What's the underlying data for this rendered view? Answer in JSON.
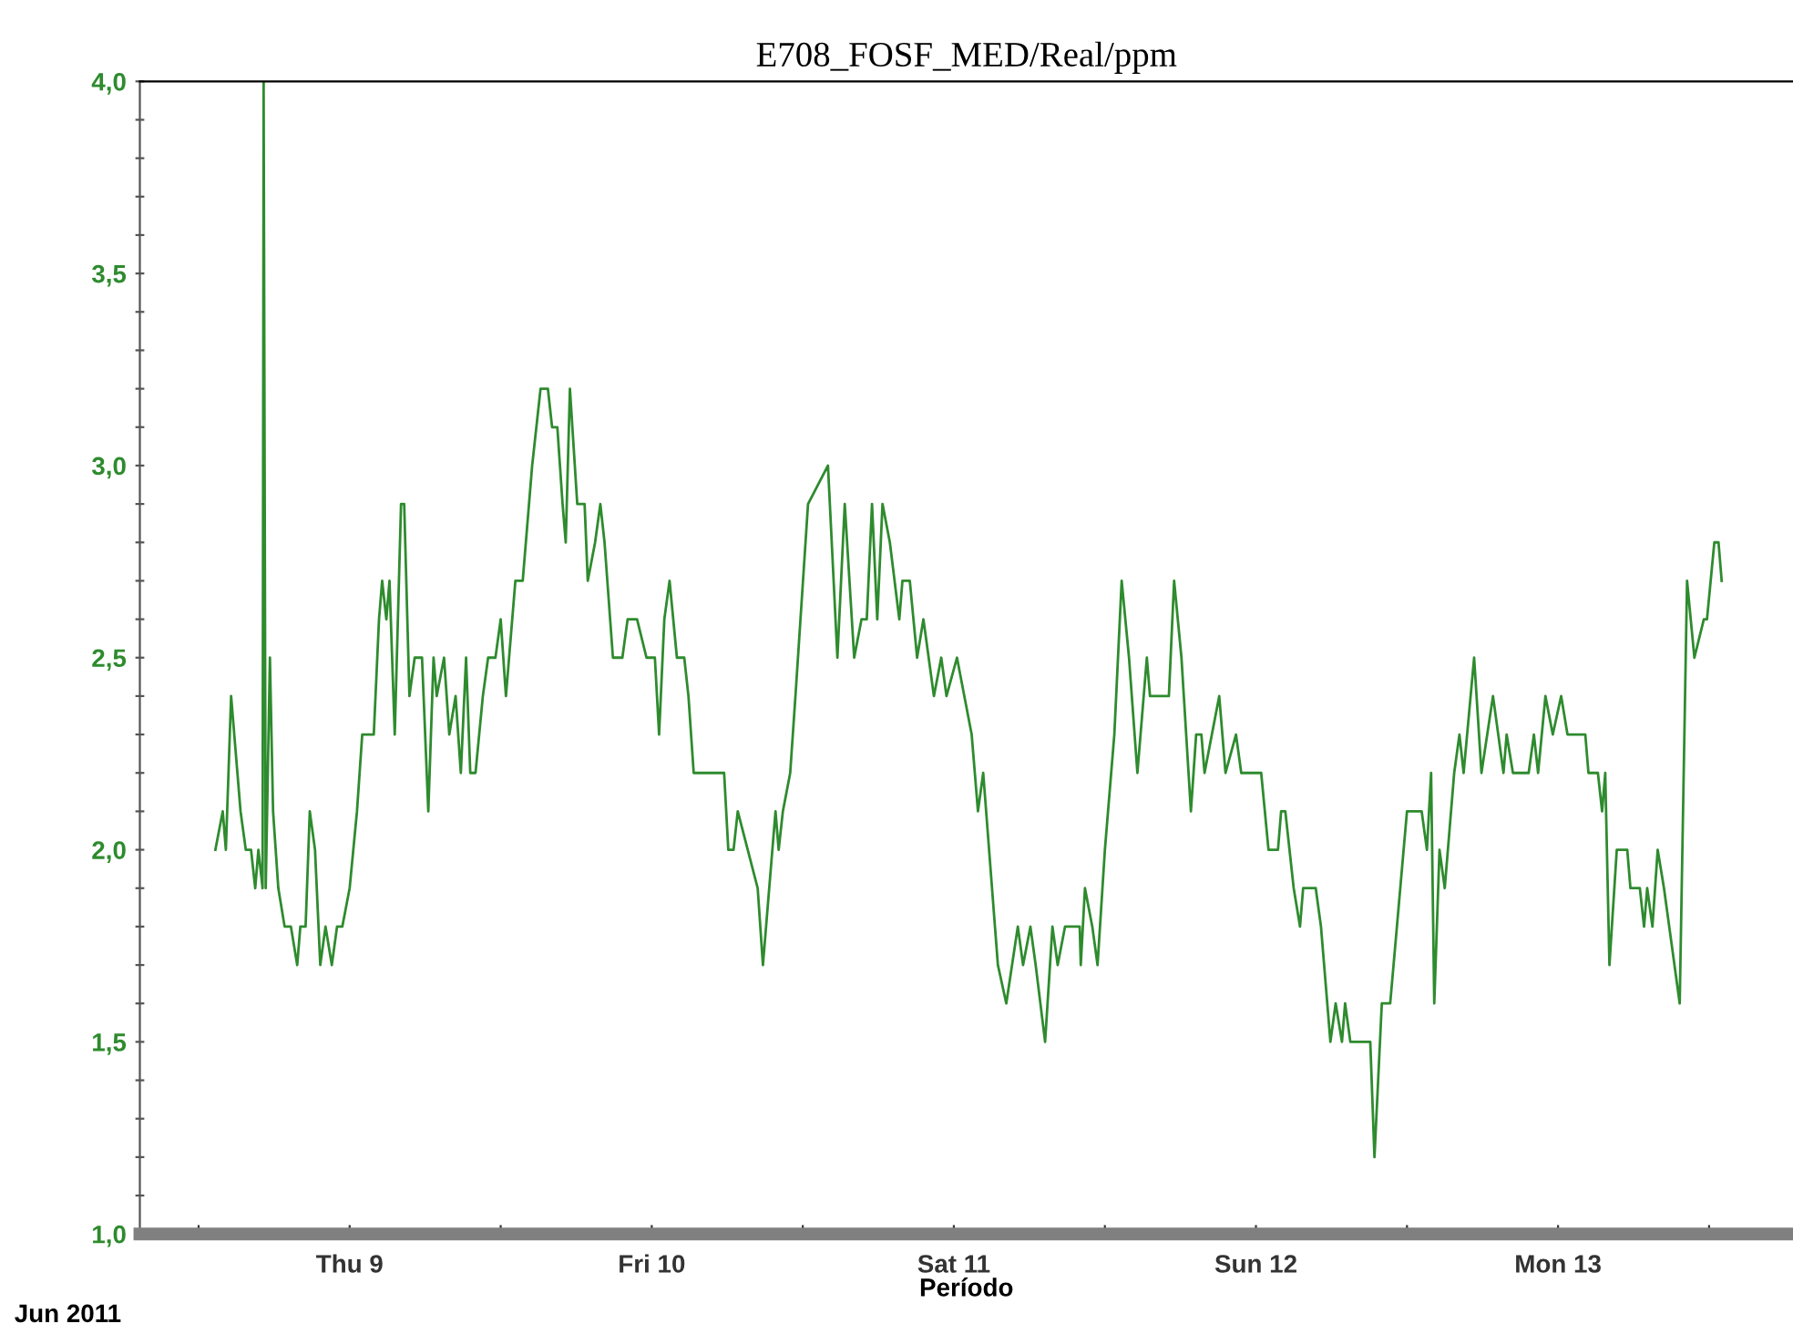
{
  "chart_data": {
    "type": "line",
    "title": "E708_FOSF_MED/Real/ppm",
    "xlabel": "Período",
    "annotations": [
      "Jun 2011"
    ],
    "xlim": [
      "2011-06-08T07:20",
      "2011-06-13T18:40"
    ],
    "xticks": [
      {
        "value": "2011-06-08T12:00",
        "label": null
      },
      {
        "value": "2011-06-09",
        "label": "Thu 9"
      },
      {
        "value": "2011-06-09T12:00",
        "label": null
      },
      {
        "value": "2011-06-10",
        "label": "Fri 10"
      },
      {
        "value": "2011-06-10T12:00",
        "label": null
      },
      {
        "value": "2011-06-11",
        "label": "Sat 11"
      },
      {
        "value": "2011-06-11T12:00",
        "label": null
      },
      {
        "value": "2011-06-12",
        "label": "Sun 12"
      },
      {
        "value": "2011-06-12T12:00",
        "label": null
      },
      {
        "value": "2011-06-13",
        "label": "Mon 13"
      },
      {
        "value": "2011-06-13T12:00",
        "label": null
      }
    ],
    "ylim": [
      1.0,
      4.0
    ],
    "yticks": [
      {
        "value": 1.0,
        "label": "1,0"
      },
      {
        "value": 1.1,
        "label": null
      },
      {
        "value": 1.2,
        "label": null
      },
      {
        "value": 1.3,
        "label": null
      },
      {
        "value": 1.4,
        "label": null
      },
      {
        "value": 1.5,
        "label": "1,5"
      },
      {
        "value": 1.6,
        "label": null
      },
      {
        "value": 1.7,
        "label": null
      },
      {
        "value": 1.8,
        "label": null
      },
      {
        "value": 1.9,
        "label": null
      },
      {
        "value": 2.0,
        "label": "2,0"
      },
      {
        "value": 2.1,
        "label": null
      },
      {
        "value": 2.2,
        "label": null
      },
      {
        "value": 2.3,
        "label": null
      },
      {
        "value": 2.4,
        "label": null
      },
      {
        "value": 2.5,
        "label": "2,5"
      },
      {
        "value": 2.6,
        "label": null
      },
      {
        "value": 2.7,
        "label": null
      },
      {
        "value": 2.8,
        "label": null
      },
      {
        "value": 2.9,
        "label": null
      },
      {
        "value": 3.0,
        "label": "3,0"
      },
      {
        "value": 3.1,
        "label": null
      },
      {
        "value": 3.2,
        "label": null
      },
      {
        "value": 3.3,
        "label": null
      },
      {
        "value": 3.4,
        "label": null
      },
      {
        "value": 3.5,
        "label": "3,5"
      },
      {
        "value": 3.6,
        "label": null
      },
      {
        "value": 3.7,
        "label": null
      },
      {
        "value": 3.8,
        "label": null
      },
      {
        "value": 3.9,
        "label": null
      },
      {
        "value": 4.0,
        "label": "4,0"
      }
    ],
    "grid": false,
    "legend": false,
    "marker": "none",
    "line_style": "solid",
    "series": [
      {
        "color": "#2e8b2e",
        "x": [
          "2011-06-08T13:20",
          "2011-06-08T13:55",
          "2011-06-08T14:10",
          "2011-06-08T14:35",
          "2011-06-08T15:20",
          "2011-06-08T15:45",
          "2011-06-08T16:10",
          "2011-06-08T16:30",
          "2011-06-08T16:45",
          "2011-06-08T17:05",
          "2011-06-08T17:10",
          "2011-06-08T17:20",
          "2011-06-08T17:40",
          "2011-06-08T17:55",
          "2011-06-08T18:20",
          "2011-06-08T18:50",
          "2011-06-08T19:20",
          "2011-06-08T19:50",
          "2011-06-08T20:05",
          "2011-06-08T20:30",
          "2011-06-08T20:50",
          "2011-06-08T21:15",
          "2011-06-08T21:40",
          "2011-06-08T22:05",
          "2011-06-08T22:35",
          "2011-06-08T23:00",
          "2011-06-08T23:25",
          "2011-06-09T00:00",
          "2011-06-09T00:35",
          "2011-06-09T01:00",
          "2011-06-09T01:55",
          "2011-06-09T02:20",
          "2011-06-09T02:35",
          "2011-06-09T02:55",
          "2011-06-09T03:10",
          "2011-06-09T03:35",
          "2011-06-09T04:05",
          "2011-06-09T04:20",
          "2011-06-09T04:45",
          "2011-06-09T05:10",
          "2011-06-09T05:45",
          "2011-06-09T06:15",
          "2011-06-09T06:40",
          "2011-06-09T06:55",
          "2011-06-09T07:30",
          "2011-06-09T07:55",
          "2011-06-09T08:25",
          "2011-06-09T08:50",
          "2011-06-09T09:15",
          "2011-06-09T09:35",
          "2011-06-09T10:00",
          "2011-06-09T10:35",
          "2011-06-09T11:00",
          "2011-06-09T11:35",
          "2011-06-09T12:00",
          "2011-06-09T12:25",
          "2011-06-09T13:10",
          "2011-06-09T13:45",
          "2011-06-09T14:30",
          "2011-06-09T15:10",
          "2011-06-09T15:45",
          "2011-06-09T16:05",
          "2011-06-09T16:30",
          "2011-06-09T16:55",
          "2011-06-09T17:10",
          "2011-06-09T17:30",
          "2011-06-09T18:05",
          "2011-06-09T18:40",
          "2011-06-09T18:55",
          "2011-06-09T19:30",
          "2011-06-09T19:55",
          "2011-06-09T20:15",
          "2011-06-09T20:55",
          "2011-06-09T21:40",
          "2011-06-09T22:05",
          "2011-06-09T22:50",
          "2011-06-09T23:35",
          "2011-06-10T00:15",
          "2011-06-10T00:35",
          "2011-06-10T01:00",
          "2011-06-10T01:25",
          "2011-06-10T02:00",
          "2011-06-10T02:35",
          "2011-06-10T02:55",
          "2011-06-10T03:20",
          "2011-06-10T04:10",
          "2011-06-10T04:45",
          "2011-06-10T05:45",
          "2011-06-10T06:05",
          "2011-06-10T06:30",
          "2011-06-10T06:50",
          "2011-06-10T08:25",
          "2011-06-10T08:50",
          "2011-06-10T09:50",
          "2011-06-10T10:05",
          "2011-06-10T10:25",
          "2011-06-10T11:00",
          "2011-06-10T11:25",
          "2011-06-10T12:25",
          "2011-06-10T14:00",
          "2011-06-10T14:45",
          "2011-06-10T15:20",
          "2011-06-10T16:05",
          "2011-06-10T16:40",
          "2011-06-10T17:05",
          "2011-06-10T17:30",
          "2011-06-10T17:55",
          "2011-06-10T18:20",
          "2011-06-10T18:55",
          "2011-06-10T19:40",
          "2011-06-10T19:55",
          "2011-06-10T20:30",
          "2011-06-10T21:05",
          "2011-06-10T21:35",
          "2011-06-10T22:00",
          "2011-06-10T22:25",
          "2011-06-10T23:00",
          "2011-06-10T23:25",
          "2011-06-11T00:15",
          "2011-06-11T00:50",
          "2011-06-11T01:25",
          "2011-06-11T01:55",
          "2011-06-11T02:20",
          "2011-06-11T03:30",
          "2011-06-11T04:10",
          "2011-06-11T05:05",
          "2011-06-11T05:30",
          "2011-06-11T06:05",
          "2011-06-11T06:30",
          "2011-06-11T07:15",
          "2011-06-11T07:50",
          "2011-06-11T08:15",
          "2011-06-11T08:50",
          "2011-06-11T10:00",
          "2011-06-11T10:05",
          "2011-06-11T10:25",
          "2011-06-11T11:00",
          "2011-06-11T11:25",
          "2011-06-11T12:00",
          "2011-06-11T12:45",
          "2011-06-11T13:20",
          "2011-06-11T13:55",
          "2011-06-11T14:35",
          "2011-06-11T15:20",
          "2011-06-11T15:35",
          "2011-06-11T17:05",
          "2011-06-11T17:30",
          "2011-06-11T18:05",
          "2011-06-11T18:50",
          "2011-06-11T19:15",
          "2011-06-11T19:40",
          "2011-06-11T19:55",
          "2011-06-11T20:30",
          "2011-06-11T21:05",
          "2011-06-11T21:35",
          "2011-06-11T22:25",
          "2011-06-11T22:50",
          "2011-06-12T00:25",
          "2011-06-12T01:00",
          "2011-06-12T01:45",
          "2011-06-12T02:00",
          "2011-06-12T02:20",
          "2011-06-12T03:00",
          "2011-06-12T03:30",
          "2011-06-12T03:45",
          "2011-06-12T04:45",
          "2011-06-12T05:10",
          "2011-06-12T05:40",
          "2011-06-12T05:55",
          "2011-06-12T06:20",
          "2011-06-12T06:50",
          "2011-06-12T07:05",
          "2011-06-12T07:30",
          "2011-06-12T09:05",
          "2011-06-12T09:25",
          "2011-06-12T10:00",
          "2011-06-12T10:40",
          "2011-06-12T12:00",
          "2011-06-12T13:10",
          "2011-06-12T13:35",
          "2011-06-12T13:55",
          "2011-06-12T14:10",
          "2011-06-12T14:35",
          "2011-06-12T15:00",
          "2011-06-12T15:30",
          "2011-06-12T15:45",
          "2011-06-12T16:10",
          "2011-06-12T16:30",
          "2011-06-12T17:20",
          "2011-06-12T17:55",
          "2011-06-12T18:50",
          "2011-06-12T19:15",
          "2011-06-12T19:40",
          "2011-06-12T19:55",
          "2011-06-12T20:25",
          "2011-06-12T21:40",
          "2011-06-12T22:05",
          "2011-06-12T22:25",
          "2011-06-12T23:00",
          "2011-06-12T23:35",
          "2011-06-13T00:15",
          "2011-06-13T00:45",
          "2011-06-13T02:10",
          "2011-06-13T02:25",
          "2011-06-13T03:10",
          "2011-06-13T03:30",
          "2011-06-13T03:45",
          "2011-06-13T04:05",
          "2011-06-13T04:40",
          "2011-06-13T05:30",
          "2011-06-13T05:45",
          "2011-06-13T06:30",
          "2011-06-13T06:50",
          "2011-06-13T07:05",
          "2011-06-13T07:30",
          "2011-06-13T07:55",
          "2011-06-13T08:25",
          "2011-06-13T08:50",
          "2011-06-13T09:40",
          "2011-06-13T10:15",
          "2011-06-13T10:50",
          "2011-06-13T11:35",
          "2011-06-13T11:50",
          "2011-06-13T12:25",
          "2011-06-13T12:45",
          "2011-06-13T13:00"
        ],
        "values": [
          2.0,
          2.1,
          2.0,
          2.4,
          2.1,
          2.0,
          2.0,
          1.9,
          2.0,
          1.9,
          4.0,
          1.9,
          2.5,
          2.1,
          1.9,
          1.8,
          1.8,
          1.7,
          1.8,
          1.8,
          2.1,
          2.0,
          1.7,
          1.8,
          1.7,
          1.8,
          1.8,
          1.9,
          2.1,
          2.3,
          2.3,
          2.6,
          2.7,
          2.6,
          2.7,
          2.3,
          2.9,
          2.9,
          2.4,
          2.5,
          2.5,
          2.1,
          2.5,
          2.4,
          2.5,
          2.3,
          2.4,
          2.2,
          2.5,
          2.2,
          2.2,
          2.4,
          2.5,
          2.5,
          2.6,
          2.4,
          2.7,
          2.7,
          3.0,
          3.2,
          3.2,
          3.1,
          3.1,
          2.9,
          2.8,
          3.2,
          2.9,
          2.9,
          2.7,
          2.8,
          2.9,
          2.8,
          2.5,
          2.5,
          2.6,
          2.6,
          2.5,
          2.5,
          2.3,
          2.6,
          2.7,
          2.5,
          2.5,
          2.4,
          2.2,
          2.2,
          2.2,
          2.2,
          2.0,
          2.0,
          2.1,
          1.9,
          1.7,
          2.1,
          2.0,
          2.1,
          2.2,
          2.4,
          2.9,
          3.0,
          2.5,
          2.9,
          2.5,
          2.6,
          2.6,
          2.9,
          2.6,
          2.9,
          2.8,
          2.6,
          2.7,
          2.7,
          2.5,
          2.6,
          2.5,
          2.4,
          2.5,
          2.4,
          2.5,
          2.4,
          2.3,
          2.1,
          2.2,
          1.7,
          1.6,
          1.8,
          1.7,
          1.8,
          1.7,
          1.5,
          1.8,
          1.7,
          1.8,
          1.8,
          1.7,
          1.9,
          1.8,
          1.7,
          2.0,
          2.3,
          2.7,
          2.5,
          2.2,
          2.5,
          2.4,
          2.4,
          2.7,
          2.5,
          2.1,
          2.3,
          2.3,
          2.2,
          2.3,
          2.4,
          2.2,
          2.3,
          2.2,
          2.2,
          2.0,
          2.0,
          2.1,
          2.1,
          1.9,
          1.8,
          1.9,
          1.9,
          1.8,
          1.6,
          1.5,
          1.6,
          1.5,
          1.6,
          1.5,
          1.5,
          1.2,
          1.6,
          1.6,
          2.1,
          2.1,
          2.0,
          2.2,
          1.6,
          2.0,
          1.9,
          2.1,
          2.2,
          2.3,
          2.2,
          2.5,
          2.2,
          2.4,
          2.3,
          2.2,
          2.3,
          2.2,
          2.2,
          2.3,
          2.2,
          2.4,
          2.3,
          2.4,
          2.3,
          2.3,
          2.2,
          2.2,
          2.1,
          2.2,
          1.7,
          2.0,
          2.0,
          1.9,
          1.9,
          1.8,
          1.9,
          1.8,
          2.0,
          1.9,
          1.8,
          1.6,
          2.7,
          2.5,
          2.6,
          2.6,
          2.8,
          2.8,
          2.7
        ]
      }
    ]
  }
}
